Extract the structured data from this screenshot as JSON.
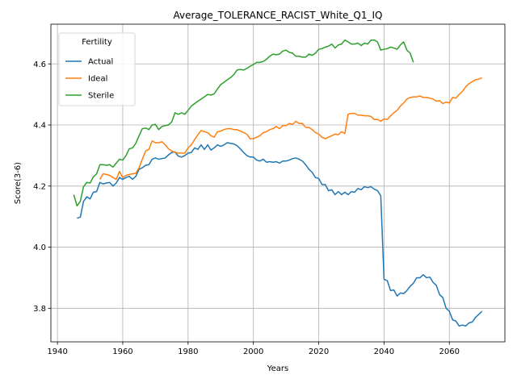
{
  "chart_data": {
    "type": "line",
    "title": "Average_TOLERANCE_RACIST_White_Q1_IQ",
    "xlabel": "Years",
    "ylabel": "Score(3-6)",
    "xlim": [
      1938,
      2077
    ],
    "ylim": [
      3.69,
      4.73
    ],
    "xticks": [
      1940,
      1960,
      1980,
      2000,
      2020,
      2040,
      2060
    ],
    "yticks": [
      3.8,
      4.0,
      4.2,
      4.4,
      4.6
    ],
    "grid": true,
    "legend": {
      "title": "Fertility",
      "placement": "top-left"
    },
    "series": [
      {
        "name": "Actual",
        "color": "#1f77b4",
        "x": [
          1946,
          1947,
          1948,
          1949,
          1950,
          1951,
          1952,
          1953,
          1954,
          1955,
          1956,
          1957,
          1958,
          1959,
          1960,
          1961,
          1962,
          1963,
          1964,
          1965,
          1966,
          1967,
          1968,
          1969,
          1970,
          1971,
          1972,
          1973,
          1974,
          1975,
          1976,
          1977,
          1978,
          1979,
          1980,
          1981,
          1982,
          1983,
          1984,
          1985,
          1986,
          1987,
          1988,
          1989,
          1990,
          1991,
          1992,
          1993,
          1994,
          1995,
          1996,
          1997,
          1998,
          1999,
          2000,
          2001,
          2002,
          2003,
          2004,
          2005,
          2006,
          2007,
          2008,
          2009,
          2010,
          2011,
          2012,
          2013,
          2014,
          2015,
          2016,
          2017,
          2018,
          2019,
          2020,
          2021,
          2022,
          2023,
          2024,
          2025,
          2026,
          2027,
          2028,
          2029,
          2030,
          2031,
          2032,
          2033,
          2034,
          2035,
          2036,
          2037,
          2038,
          2039,
          2040,
          2041,
          2042,
          2043,
          2044,
          2045,
          2046,
          2047,
          2048,
          2049,
          2050,
          2051,
          2052,
          2053,
          2054,
          2055,
          2056,
          2057,
          2058,
          2059,
          2060,
          2061,
          2062,
          2063,
          2064,
          2065,
          2066,
          2067,
          2068,
          2069,
          2070
        ],
        "values": [
          4.095,
          4.098,
          4.15,
          4.165,
          4.158,
          4.18,
          4.182,
          4.212,
          4.207,
          4.21,
          4.212,
          4.2,
          4.21,
          4.228,
          4.222,
          4.228,
          4.232,
          4.222,
          4.232,
          4.255,
          4.26,
          4.268,
          4.27,
          4.288,
          4.292,
          4.288,
          4.29,
          4.292,
          4.302,
          4.31,
          4.312,
          4.298,
          4.295,
          4.3,
          4.308,
          4.31,
          4.325,
          4.32,
          4.335,
          4.32,
          4.335,
          4.318,
          4.325,
          4.335,
          4.33,
          4.335,
          4.342,
          4.34,
          4.338,
          4.332,
          4.322,
          4.31,
          4.3,
          4.295,
          4.295,
          4.285,
          4.282,
          4.288,
          4.278,
          4.28,
          4.278,
          4.28,
          4.275,
          4.282,
          4.282,
          4.285,
          4.29,
          4.292,
          4.288,
          4.282,
          4.27,
          4.255,
          4.245,
          4.228,
          4.225,
          4.205,
          4.205,
          4.185,
          4.188,
          4.172,
          4.182,
          4.172,
          4.18,
          4.172,
          4.182,
          4.18,
          4.192,
          4.188,
          4.198,
          4.195,
          4.198,
          4.19,
          4.185,
          4.168,
          3.895,
          3.89,
          3.858,
          3.86,
          3.84,
          3.85,
          3.848,
          3.858,
          3.872,
          3.882,
          3.9,
          3.9,
          3.91,
          3.9,
          3.902,
          3.885,
          3.875,
          3.845,
          3.835,
          3.8,
          3.79,
          3.762,
          3.758,
          3.742,
          3.745,
          3.742,
          3.752,
          3.755,
          3.77,
          3.78,
          3.79
        ]
      },
      {
        "name": "Ideal",
        "color": "#ff7f0e",
        "x": [
          1953,
          1954,
          1955,
          1956,
          1957,
          1958,
          1959,
          1960,
          1961,
          1962,
          1963,
          1964,
          1965,
          1966,
          1967,
          1968,
          1969,
          1970,
          1971,
          1972,
          1973,
          1974,
          1975,
          1976,
          1977,
          1978,
          1979,
          1980,
          1981,
          1982,
          1983,
          1984,
          1985,
          1986,
          1987,
          1988,
          1989,
          1990,
          1991,
          1992,
          1993,
          1994,
          1995,
          1996,
          1997,
          1998,
          1999,
          2000,
          2001,
          2002,
          2003,
          2004,
          2005,
          2006,
          2007,
          2008,
          2009,
          2010,
          2011,
          2012,
          2013,
          2014,
          2015,
          2016,
          2017,
          2018,
          2019,
          2020,
          2021,
          2022,
          2023,
          2024,
          2025,
          2026,
          2027,
          2028,
          2029,
          2030,
          2031,
          2032,
          2033,
          2034,
          2035,
          2036,
          2037,
          2038,
          2039,
          2040,
          2041,
          2042,
          2043,
          2044,
          2045,
          2046,
          2047,
          2048,
          2049,
          2050,
          2051,
          2052,
          2053,
          2054,
          2055,
          2056,
          2057,
          2058,
          2059,
          2060,
          2061,
          2062,
          2063,
          2064,
          2065,
          2066,
          2067,
          2068,
          2069,
          2070
        ],
        "values": [
          4.222,
          4.24,
          4.238,
          4.235,
          4.228,
          4.222,
          4.248,
          4.228,
          4.235,
          4.238,
          4.24,
          4.242,
          4.26,
          4.288,
          4.315,
          4.32,
          4.348,
          4.342,
          4.342,
          4.345,
          4.335,
          4.322,
          4.315,
          4.31,
          4.308,
          4.308,
          4.308,
          4.325,
          4.335,
          4.352,
          4.368,
          4.382,
          4.378,
          4.375,
          4.365,
          4.36,
          4.378,
          4.38,
          4.385,
          4.388,
          4.388,
          4.385,
          4.385,
          4.38,
          4.375,
          4.37,
          4.355,
          4.355,
          4.36,
          4.365,
          4.375,
          4.378,
          4.385,
          4.388,
          4.395,
          4.388,
          4.398,
          4.398,
          4.405,
          4.402,
          4.412,
          4.405,
          4.405,
          4.392,
          4.392,
          4.385,
          4.375,
          4.37,
          4.36,
          4.355,
          4.36,
          4.365,
          4.37,
          4.368,
          4.378,
          4.372,
          4.435,
          4.438,
          4.438,
          4.432,
          4.432,
          4.43,
          4.43,
          4.428,
          4.418,
          4.418,
          4.412,
          4.42,
          4.418,
          4.43,
          4.44,
          4.448,
          4.462,
          4.472,
          4.485,
          4.49,
          4.492,
          4.492,
          4.495,
          4.49,
          4.49,
          4.488,
          4.485,
          4.478,
          4.48,
          4.47,
          4.475,
          4.472,
          4.49,
          4.488,
          4.5,
          4.51,
          4.525,
          4.535,
          4.542,
          4.548,
          4.55,
          4.555
        ]
      },
      {
        "name": "Sterile",
        "color": "#2ca02c",
        "x": [
          1945,
          1946,
          1947,
          1948,
          1949,
          1950,
          1951,
          1952,
          1953,
          1954,
          1955,
          1956,
          1957,
          1958,
          1959,
          1960,
          1961,
          1962,
          1963,
          1964,
          1965,
          1966,
          1967,
          1968,
          1969,
          1970,
          1971,
          1972,
          1973,
          1974,
          1975,
          1976,
          1977,
          1978,
          1979,
          1980,
          1981,
          1982,
          1983,
          1984,
          1985,
          1986,
          1987,
          1988,
          1989,
          1990,
          1991,
          1992,
          1993,
          1994,
          1995,
          1996,
          1997,
          1998,
          1999,
          2000,
          2001,
          2002,
          2003,
          2004,
          2005,
          2006,
          2007,
          2008,
          2009,
          2010,
          2011,
          2012,
          2013,
          2014,
          2015,
          2016,
          2017,
          2018,
          2019,
          2020,
          2021,
          2022,
          2023,
          2024,
          2025,
          2026,
          2027,
          2028,
          2029,
          2030,
          2031,
          2032,
          2033,
          2034,
          2035,
          2036,
          2037,
          2038,
          2039,
          2040,
          2041,
          2042,
          2043,
          2044,
          2045,
          2046,
          2047,
          2048,
          2049
        ],
        "values": [
          4.172,
          4.135,
          4.15,
          4.198,
          4.212,
          4.21,
          4.23,
          4.24,
          4.27,
          4.27,
          4.268,
          4.27,
          4.262,
          4.275,
          4.288,
          4.285,
          4.3,
          4.322,
          4.325,
          4.34,
          4.365,
          4.388,
          4.39,
          4.385,
          4.4,
          4.402,
          4.385,
          4.395,
          4.398,
          4.4,
          4.41,
          4.44,
          4.435,
          4.44,
          4.435,
          4.448,
          4.462,
          4.47,
          4.478,
          4.485,
          4.492,
          4.5,
          4.498,
          4.502,
          4.518,
          4.532,
          4.54,
          4.548,
          4.555,
          4.565,
          4.58,
          4.582,
          4.58,
          4.585,
          4.592,
          4.598,
          4.605,
          4.605,
          4.608,
          4.615,
          4.625,
          4.632,
          4.63,
          4.632,
          4.642,
          4.645,
          4.638,
          4.635,
          4.625,
          4.625,
          4.622,
          4.622,
          4.632,
          4.628,
          4.635,
          4.648,
          4.65,
          4.655,
          4.658,
          4.665,
          4.652,
          4.662,
          4.665,
          4.678,
          4.672,
          4.665,
          4.665,
          4.668,
          4.66,
          4.668,
          4.665,
          4.678,
          4.678,
          4.672,
          4.645,
          4.648,
          4.65,
          4.655,
          4.652,
          4.648,
          4.662,
          4.672,
          4.645,
          4.635,
          4.605
        ]
      }
    ]
  }
}
